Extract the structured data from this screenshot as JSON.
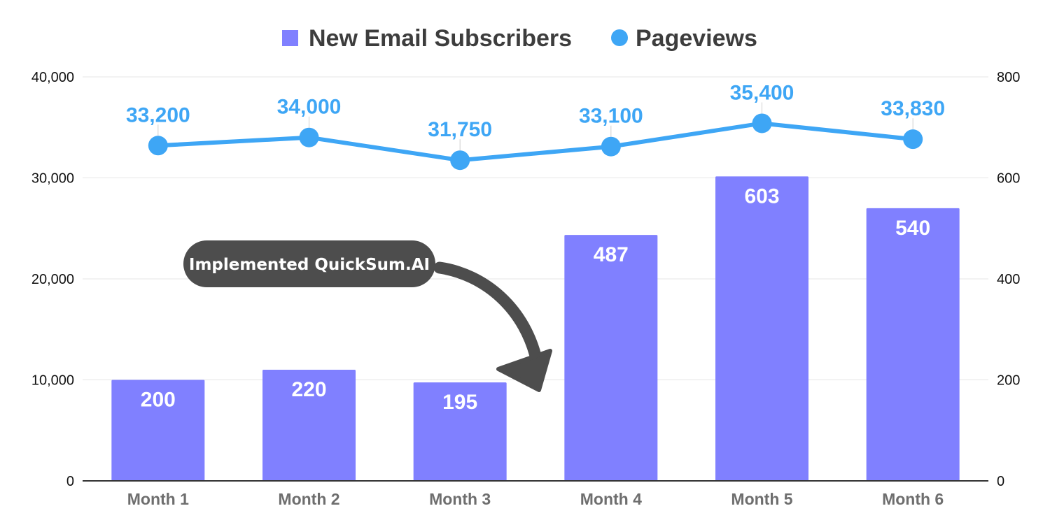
{
  "chart_data": {
    "type": "bar",
    "categories": [
      "Month 1",
      "Month 2",
      "Month 3",
      "Month 4",
      "Month 5",
      "Month 6"
    ],
    "series": [
      {
        "name": "New Email Subscribers",
        "type": "bar",
        "axis": "right",
        "values": [
          200,
          220,
          195,
          487,
          603,
          540
        ],
        "labels": [
          "200",
          "220",
          "195",
          "487",
          "603",
          "540"
        ],
        "color": "#8080ff"
      },
      {
        "name": "Pageviews",
        "type": "line",
        "axis": "left",
        "values": [
          33200,
          34000,
          31750,
          33100,
          35400,
          33830
        ],
        "labels": [
          "33,200",
          "34,000",
          "31,750",
          "33,100",
          "35,400",
          "33,830"
        ],
        "color": "#3ea6f5"
      }
    ],
    "y_left": {
      "ylim": [
        0,
        40000
      ],
      "ticks": [
        0,
        10000,
        20000,
        30000,
        40000
      ],
      "tick_labels": [
        "0",
        "10,000",
        "20,000",
        "30,000",
        "40,000"
      ]
    },
    "y_right": {
      "ylim": [
        0,
        800
      ],
      "ticks": [
        0,
        200,
        400,
        600,
        800
      ],
      "tick_labels": [
        "0",
        "200",
        "400",
        "600",
        "800"
      ]
    },
    "title": "",
    "xlabel": "",
    "ylabel": "",
    "grid": true,
    "legend_position": "top-center",
    "annotation": {
      "text": "Implemented QuickSum.AI",
      "points_to": "Month 4",
      "color": "#4d4d4d"
    }
  }
}
